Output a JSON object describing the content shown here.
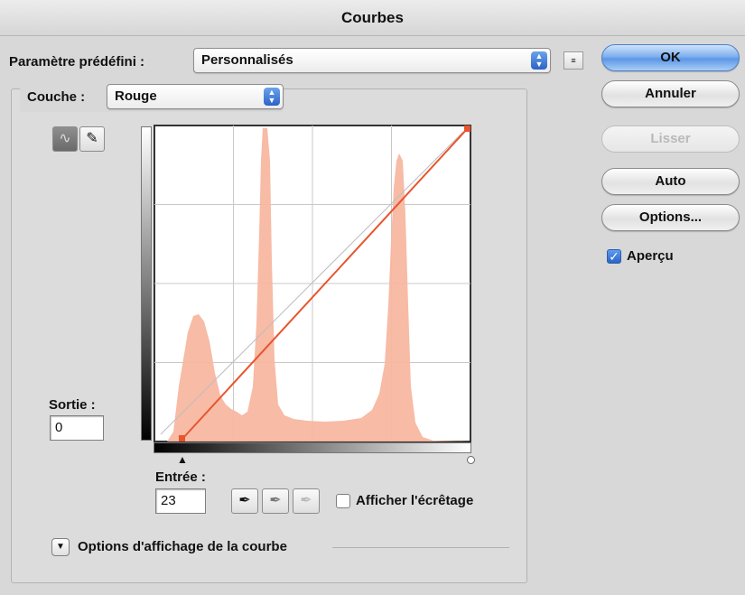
{
  "window": {
    "title": "Courbes"
  },
  "preset": {
    "label": "Paramètre prédéfini :",
    "value": "Personnalisés"
  },
  "channel": {
    "label": "Couche :",
    "value": "Rouge"
  },
  "buttons": {
    "ok": "OK",
    "cancel": "Annuler",
    "smooth": "Lisser",
    "auto": "Auto",
    "options": "Options..."
  },
  "preview": {
    "label": "Aperçu",
    "checked": true
  },
  "output": {
    "label": "Sortie :",
    "value": "0"
  },
  "input": {
    "label": "Entrée :",
    "value": "23"
  },
  "clipping": {
    "label": "Afficher l'écrêtage",
    "checked": false
  },
  "curve_display_options": {
    "label": "Options d'affichage de la courbe"
  },
  "histogram": {
    "color": "#f7b7a1",
    "channel_color": "#e8542c"
  },
  "curve": {
    "points": [
      [
        23,
        0
      ],
      [
        255,
        255
      ]
    ]
  }
}
